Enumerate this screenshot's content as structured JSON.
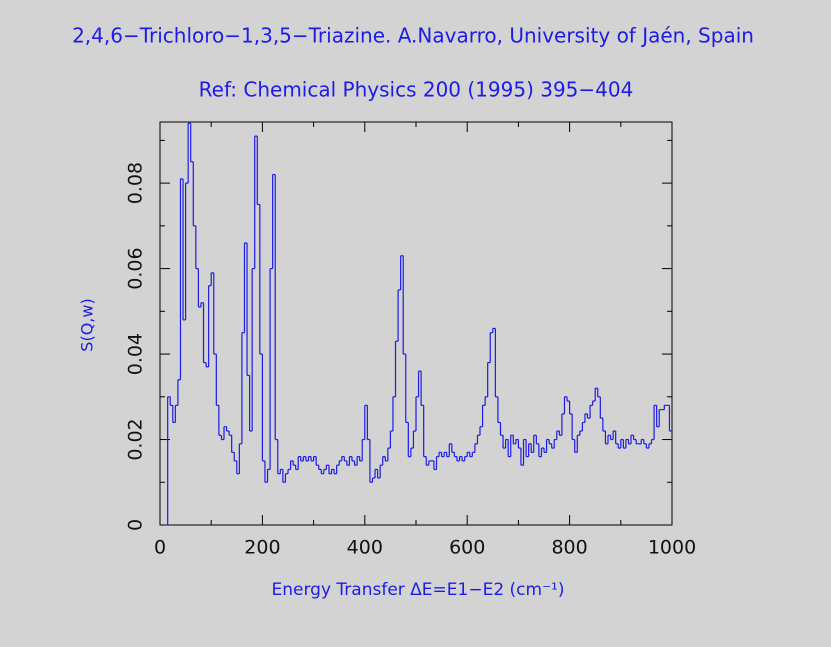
{
  "chart_data": {
    "type": "step",
    "title": "2,4,6−Trichloro−1,3,5−Triazine. A.Navarro, University of Jaén, Spain",
    "subtitle": "Ref: Chemical Physics 200 (1995) 395−404",
    "xlabel": "Energy Transfer ΔE=E1−E2 (cm⁻¹)",
    "ylabel": "S(Q,w)",
    "color": "#1c1ce6",
    "xlim": [
      0,
      1000
    ],
    "ylim": [
      0,
      0.0943
    ],
    "xticks": [
      0,
      200,
      400,
      600,
      800,
      1000
    ],
    "yticks": [
      0,
      0.02,
      0.04,
      0.06,
      0.08
    ],
    "xminorticks": [
      100,
      300,
      500,
      700,
      900
    ],
    "yminorticks": [
      0.01,
      0.03,
      0.05,
      0.07,
      0.09
    ],
    "x": [
      10,
      15,
      20,
      25,
      30,
      35,
      40,
      45,
      50,
      55,
      60,
      65,
      70,
      75,
      80,
      85,
      90,
      95,
      100,
      105,
      110,
      115,
      120,
      125,
      130,
      135,
      140,
      145,
      150,
      155,
      160,
      165,
      170,
      175,
      180,
      185,
      190,
      195,
      200,
      205,
      210,
      215,
      220,
      225,
      230,
      235,
      240,
      245,
      250,
      255,
      260,
      265,
      270,
      275,
      280,
      285,
      290,
      295,
      300,
      305,
      310,
      315,
      320,
      325,
      330,
      335,
      340,
      345,
      350,
      355,
      360,
      365,
      370,
      375,
      380,
      385,
      390,
      395,
      400,
      405,
      410,
      415,
      420,
      425,
      430,
      435,
      440,
      445,
      450,
      455,
      460,
      465,
      470,
      475,
      480,
      485,
      490,
      495,
      500,
      505,
      510,
      515,
      520,
      525,
      530,
      535,
      540,
      545,
      550,
      555,
      560,
      565,
      570,
      575,
      580,
      585,
      590,
      595,
      600,
      605,
      610,
      615,
      620,
      625,
      630,
      635,
      640,
      645,
      650,
      655,
      660,
      665,
      670,
      675,
      680,
      685,
      690,
      695,
      700,
      705,
      710,
      715,
      720,
      725,
      730,
      735,
      740,
      745,
      750,
      755,
      760,
      765,
      770,
      775,
      780,
      785,
      790,
      795,
      800,
      805,
      810,
      815,
      820,
      825,
      830,
      835,
      840,
      845,
      850,
      855,
      860,
      865,
      870,
      875,
      880,
      885,
      890,
      895,
      900,
      905,
      910,
      915,
      920,
      925,
      930,
      935,
      940,
      945,
      950,
      955,
      960,
      965,
      970,
      975,
      980,
      985,
      990,
      995
    ],
    "values": [
      0,
      0.03,
      0.028,
      0.024,
      0.028,
      0.034,
      0.081,
      0.048,
      0.08,
      0.094,
      0.085,
      0.07,
      0.06,
      0.051,
      0.052,
      0.038,
      0.037,
      0.056,
      0.059,
      0.04,
      0.028,
      0.021,
      0.02,
      0.023,
      0.022,
      0.021,
      0.017,
      0.015,
      0.012,
      0.019,
      0.045,
      0.066,
      0.035,
      0.022,
      0.06,
      0.091,
      0.075,
      0.04,
      0.015,
      0.01,
      0.013,
      0.06,
      0.082,
      0.02,
      0.012,
      0.013,
      0.01,
      0.012,
      0.013,
      0.015,
      0.014,
      0.013,
      0.016,
      0.015,
      0.016,
      0.015,
      0.016,
      0.015,
      0.016,
      0.014,
      0.013,
      0.012,
      0.013,
      0.014,
      0.012,
      0.013,
      0.012,
      0.014,
      0.015,
      0.016,
      0.015,
      0.014,
      0.016,
      0.015,
      0.014,
      0.016,
      0.015,
      0.02,
      0.028,
      0.02,
      0.01,
      0.011,
      0.013,
      0.011,
      0.014,
      0.016,
      0.015,
      0.018,
      0.022,
      0.03,
      0.043,
      0.055,
      0.063,
      0.04,
      0.024,
      0.016,
      0.018,
      0.022,
      0.03,
      0.036,
      0.028,
      0.016,
      0.014,
      0.015,
      0.015,
      0.013,
      0.016,
      0.017,
      0.016,
      0.017,
      0.016,
      0.019,
      0.017,
      0.016,
      0.015,
      0.016,
      0.015,
      0.016,
      0.017,
      0.016,
      0.017,
      0.019,
      0.021,
      0.023,
      0.028,
      0.03,
      0.038,
      0.045,
      0.046,
      0.03,
      0.024,
      0.021,
      0.018,
      0.02,
      0.016,
      0.021,
      0.019,
      0.02,
      0.018,
      0.014,
      0.02,
      0.016,
      0.019,
      0.017,
      0.021,
      0.019,
      0.016,
      0.018,
      0.017,
      0.02,
      0.019,
      0.018,
      0.02,
      0.022,
      0.021,
      0.026,
      0.03,
      0.029,
      0.026,
      0.02,
      0.017,
      0.021,
      0.022,
      0.024,
      0.026,
      0.025,
      0.028,
      0.029,
      0.032,
      0.03,
      0.025,
      0.022,
      0.019,
      0.021,
      0.02,
      0.022,
      0.019,
      0.018,
      0.02,
      0.018,
      0.02,
      0.019,
      0.021,
      0.02,
      0.019,
      0.019,
      0.02,
      0.019,
      0.018,
      0.019,
      0.02,
      0.028,
      0.023,
      0.027,
      0.027,
      0.028,
      0.028,
      0.022
    ]
  }
}
